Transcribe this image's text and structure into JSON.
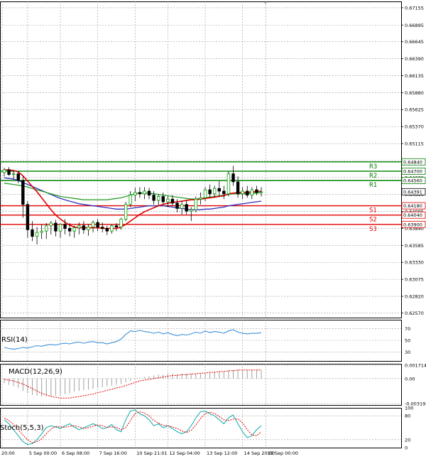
{
  "chart_data": {
    "type": "candlestick",
    "title": "",
    "main": {
      "y_ticks": [
        "0.67155",
        "0.66895",
        "0.66645",
        "0.66390",
        "0.66135",
        "0.65880",
        "0.65625",
        "0.65370",
        "0.65115",
        "0.64860",
        "0.64605",
        "0.64350",
        "0.64095",
        "0.63840",
        "0.63585",
        "0.63330",
        "0.63075",
        "0.62820",
        "0.62570"
      ],
      "tick_values": [
        0.67155,
        0.66895,
        0.66645,
        0.6639,
        0.66135,
        0.6588,
        0.65625,
        0.6537,
        0.65115,
        0.6486,
        0.64605,
        0.6435,
        0.64095,
        0.6384,
        0.63585,
        0.6333,
        0.63075,
        0.6282,
        0.6257
      ],
      "ylim": [
        0.625,
        0.6725
      ],
      "last_price": "0.64391",
      "last_value": 0.64391,
      "levels": [
        {
          "name": "R3",
          "value": 0.6484,
          "label": "0.64840",
          "color": "#008000"
        },
        {
          "name": "R2",
          "value": 0.647,
          "label": "0.64700",
          "color": "#008000"
        },
        {
          "name": "R1",
          "value": 0.6456,
          "label": "0.64560",
          "color": "#008000"
        },
        {
          "name": "S1",
          "value": 0.6418,
          "label": "0.64180",
          "color": "#e00000"
        },
        {
          "name": "S2",
          "value": 0.6404,
          "label": "0.64040",
          "color": "#e00000"
        },
        {
          "name": "S3",
          "value": 0.639,
          "label": "0.63900",
          "color": "#e00000"
        }
      ],
      "candles": [
        [
          0.6468,
          0.6475,
          0.6462,
          0.6472
        ],
        [
          0.6472,
          0.6476,
          0.6463,
          0.6465
        ],
        [
          0.6465,
          0.6471,
          0.6458,
          0.6466
        ],
        [
          0.6466,
          0.647,
          0.6452,
          0.6456
        ],
        [
          0.6456,
          0.6462,
          0.64,
          0.642
        ],
        [
          0.642,
          0.6425,
          0.637,
          0.6382
        ],
        [
          0.6382,
          0.6395,
          0.6365,
          0.6372
        ],
        [
          0.6372,
          0.6386,
          0.636,
          0.6378
        ],
        [
          0.6378,
          0.639,
          0.6368,
          0.638
        ],
        [
          0.638,
          0.6392,
          0.6368,
          0.6388
        ],
        [
          0.6388,
          0.6395,
          0.6375,
          0.6392
        ],
        [
          0.6392,
          0.6397,
          0.6372,
          0.638
        ],
        [
          0.638,
          0.6392,
          0.637,
          0.639
        ],
        [
          0.639,
          0.6398,
          0.6375,
          0.6384
        ],
        [
          0.6384,
          0.6392,
          0.6372,
          0.638
        ],
        [
          0.638,
          0.6388,
          0.637,
          0.6385
        ],
        [
          0.6385,
          0.6393,
          0.6375,
          0.6388
        ],
        [
          0.6388,
          0.6395,
          0.6376,
          0.6382
        ],
        [
          0.6382,
          0.639,
          0.6373,
          0.6386
        ],
        [
          0.6386,
          0.6396,
          0.6378,
          0.6393
        ],
        [
          0.6393,
          0.6398,
          0.638,
          0.6386
        ],
        [
          0.6386,
          0.6393,
          0.6378,
          0.6384
        ],
        [
          0.6384,
          0.6388,
          0.6374,
          0.638
        ],
        [
          0.638,
          0.639,
          0.6376,
          0.6388
        ],
        [
          0.6388,
          0.6392,
          0.638,
          0.6386
        ],
        [
          0.6386,
          0.64,
          0.6382,
          0.6398
        ],
        [
          0.6398,
          0.6424,
          0.6395,
          0.642
        ],
        [
          0.642,
          0.644,
          0.6416,
          0.6434
        ],
        [
          0.6434,
          0.6445,
          0.6425,
          0.6438
        ],
        [
          0.6438,
          0.6446,
          0.643,
          0.6436
        ],
        [
          0.6436,
          0.6446,
          0.6428,
          0.644
        ],
        [
          0.644,
          0.6445,
          0.6428,
          0.6434
        ],
        [
          0.6434,
          0.644,
          0.642,
          0.6426
        ],
        [
          0.6426,
          0.6435,
          0.6418,
          0.6432
        ],
        [
          0.6432,
          0.6438,
          0.642,
          0.6424
        ],
        [
          0.6424,
          0.6432,
          0.6416,
          0.6428
        ],
        [
          0.6428,
          0.6434,
          0.6418,
          0.6422
        ],
        [
          0.6422,
          0.6428,
          0.6408,
          0.6414
        ],
        [
          0.6414,
          0.6425,
          0.6405,
          0.642
        ],
        [
          0.642,
          0.6426,
          0.6405,
          0.641
        ],
        [
          0.641,
          0.6416,
          0.6395,
          0.6412
        ],
        [
          0.6412,
          0.6432,
          0.6408,
          0.6428
        ],
        [
          0.6428,
          0.6438,
          0.642,
          0.643
        ],
        [
          0.643,
          0.6446,
          0.6425,
          0.6442
        ],
        [
          0.6442,
          0.645,
          0.643,
          0.6436
        ],
        [
          0.6436,
          0.6448,
          0.643,
          0.6444
        ],
        [
          0.6444,
          0.6455,
          0.6432,
          0.644
        ],
        [
          0.644,
          0.6448,
          0.6428,
          0.6436
        ],
        [
          0.6436,
          0.647,
          0.6432,
          0.6466
        ],
        [
          0.6466,
          0.6478,
          0.6448,
          0.6454
        ],
        [
          0.6454,
          0.6462,
          0.643,
          0.6436
        ],
        [
          0.6436,
          0.6446,
          0.6428,
          0.644
        ],
        [
          0.644,
          0.6448,
          0.643,
          0.6434
        ],
        [
          0.6434,
          0.6446,
          0.6428,
          0.6442
        ],
        [
          0.6442,
          0.6448,
          0.6434,
          0.6438
        ],
        [
          0.6438,
          0.6446,
          0.6432,
          0.6439
        ]
      ],
      "sma_slow": [
        0.646,
        0.6459,
        0.6458,
        0.6456,
        0.6453,
        0.645,
        0.6447,
        0.6444,
        0.6441,
        0.6438,
        0.6435,
        0.6432,
        0.6429,
        0.6427,
        0.6425,
        0.6423,
        0.6421,
        0.642,
        0.6419,
        0.6418,
        0.6417,
        0.6416,
        0.6415,
        0.6414,
        0.6413,
        0.6413,
        0.6413,
        0.6414,
        0.6415,
        0.6416,
        0.6417,
        0.6418,
        0.6418,
        0.6418,
        0.6418,
        0.6417,
        0.6416,
        0.6415,
        0.6414,
        0.6413,
        0.6412,
        0.6412,
        0.6412,
        0.6413,
        0.6413,
        0.6414,
        0.6415,
        0.6416,
        0.6418,
        0.6419,
        0.642,
        0.6421,
        0.6422,
        0.6423,
        0.6424,
        0.6425
      ],
      "sma_mid": [
        0.6452,
        0.6451,
        0.645,
        0.6449,
        0.6448,
        0.6446,
        0.6444,
        0.6442,
        0.644,
        0.6438,
        0.6436,
        0.6434,
        0.6432,
        0.6431,
        0.643,
        0.6429,
        0.6428,
        0.6427,
        0.6427,
        0.6427,
        0.6427,
        0.6427,
        0.6427,
        0.6428,
        0.6429,
        0.643,
        0.6432,
        0.6434,
        0.6436,
        0.6437,
        0.6437,
        0.6437,
        0.6436,
        0.6435,
        0.6434,
        0.6433,
        0.6432,
        0.6431,
        0.643,
        0.6429,
        0.6428,
        0.6428,
        0.6429,
        0.643,
        0.6431,
        0.6432,
        0.6433,
        0.6434,
        0.6435,
        0.6436,
        0.6436,
        0.6436,
        0.6436,
        0.6437,
        0.6437,
        0.6438
      ],
      "sma_fast": [
        0.6472,
        0.6472,
        0.6471,
        0.6469,
        0.6463,
        0.6455,
        0.6447,
        0.6439,
        0.643,
        0.6421,
        0.6412,
        0.6404,
        0.6398,
        0.6393,
        0.6389,
        0.6386,
        0.6385,
        0.6385,
        0.6385,
        0.6385,
        0.6385,
        0.6384,
        0.6384,
        0.6384,
        0.6384,
        0.6386,
        0.639,
        0.6395,
        0.64,
        0.6405,
        0.6409,
        0.6412,
        0.6415,
        0.6418,
        0.642,
        0.6422,
        0.6423,
        0.6424,
        0.6425,
        0.6426,
        0.6427,
        0.6427,
        0.6428,
        0.6429,
        0.643,
        0.6431,
        0.6432,
        0.6433,
        0.6436,
        0.6437,
        0.6438,
        0.6438,
        0.6438,
        0.6439,
        0.6439,
        0.644
      ]
    },
    "rsi": {
      "label": "RSI(14)",
      "y_ticks": [
        "70",
        "50",
        "30"
      ],
      "tick_values": [
        70,
        50,
        30
      ],
      "ylim": [
        15,
        85
      ],
      "values": [
        38,
        36,
        35,
        36,
        38,
        37,
        39,
        41,
        40,
        42,
        43,
        42,
        44,
        45,
        44,
        46,
        47,
        45,
        47,
        48,
        46,
        46,
        44,
        46,
        48,
        52,
        60,
        66,
        65,
        67,
        65,
        64,
        62,
        64,
        61,
        63,
        60,
        58,
        60,
        59,
        61,
        64,
        62,
        66,
        63,
        65,
        64,
        62,
        66,
        68,
        64,
        62,
        61,
        62,
        62,
        63
      ]
    },
    "macd": {
      "label": "MACD(12,26,9)",
      "y_ticks": [
        "0.001714",
        "0.00",
        "-0.003195"
      ],
      "tick_values": [
        0.001714,
        0.0,
        -0.003195
      ],
      "ylim": [
        -0.0034,
        0.0019
      ],
      "histogram": [
        -0.0006,
        -0.0008,
        -0.001,
        -0.0012,
        -0.0016,
        -0.0019,
        -0.0021,
        -0.0022,
        -0.0023,
        -0.0023,
        -0.0023,
        -0.0022,
        -0.0021,
        -0.002,
        -0.0019,
        -0.0017,
        -0.0016,
        -0.0015,
        -0.0014,
        -0.0013,
        -0.0012,
        -0.0011,
        -0.001,
        -0.0009,
        -0.0008,
        -0.0007,
        -0.0005,
        -0.0003,
        -0.0001,
        0.0001,
        0.0002,
        0.0003,
        0.0004,
        0.0005,
        0.0005,
        0.0006,
        0.0006,
        0.0006,
        0.0006,
        0.0006,
        0.0006,
        0.0006,
        0.0007,
        0.0008,
        0.0008,
        0.0009,
        0.0009,
        0.0009,
        0.001,
        0.0011,
        0.0011,
        0.0011,
        0.0011,
        0.0011,
        0.0011,
        0.0011
      ],
      "signal": [
        -0.0001,
        -0.0002,
        -0.0003,
        -0.0005,
        -0.0007,
        -0.001,
        -0.0013,
        -0.0016,
        -0.0019,
        -0.0021,
        -0.0023,
        -0.0024,
        -0.0025,
        -0.0025,
        -0.0025,
        -0.0024,
        -0.0023,
        -0.0022,
        -0.0021,
        -0.002,
        -0.0018,
        -0.0017,
        -0.0015,
        -0.0014,
        -0.0012,
        -0.0011,
        -0.0009,
        -0.0007,
        -0.0005,
        -0.0003,
        -0.0002,
        -0.0001,
        0.0,
        0.0001,
        0.0002,
        0.0003,
        0.0004,
        0.0004,
        0.0005,
        0.0005,
        0.0006,
        0.0006,
        0.0007,
        0.0007,
        0.0008,
        0.0008,
        0.0009,
        0.0009,
        0.001,
        0.001,
        0.0011,
        0.0011,
        0.0011,
        0.0011,
        0.0011,
        0.0011
      ]
    },
    "stoch": {
      "label": "Stoch(5,5,3)",
      "y_ticks": [
        "100",
        "80",
        "20",
        "0"
      ],
      "tick_values": [
        100,
        80,
        20,
        0
      ],
      "ylim": [
        0,
        100
      ],
      "k": [
        70,
        60,
        45,
        30,
        15,
        8,
        10,
        20,
        35,
        50,
        55,
        52,
        48,
        55,
        60,
        52,
        45,
        50,
        55,
        60,
        55,
        48,
        50,
        58,
        45,
        40,
        70,
        92,
        95,
        85,
        80,
        70,
        55,
        60,
        50,
        55,
        48,
        40,
        35,
        40,
        55,
        75,
        90,
        92,
        85,
        80,
        70,
        60,
        75,
        82,
        60,
        40,
        25,
        30,
        45,
        55
      ],
      "d": [
        75,
        68,
        58,
        45,
        32,
        20,
        12,
        15,
        22,
        35,
        47,
        53,
        52,
        51,
        54,
        55,
        52,
        48,
        50,
        54,
        57,
        55,
        51,
        52,
        51,
        45,
        50,
        68,
        86,
        90,
        87,
        80,
        68,
        62,
        56,
        55,
        52,
        48,
        42,
        38,
        44,
        57,
        73,
        86,
        89,
        86,
        78,
        70,
        68,
        72,
        72,
        62,
        45,
        32,
        30,
        40
      ]
    },
    "x_tick_labels": [
      "20:00",
      "5 Sep 00:00",
      "6 Sep 08:00",
      "7 Sep 16:00",
      "10 Sep 21:01",
      "12 Sep 04:00",
      "13 Sep 12:00",
      "14 Sep 20:00",
      "18 Sep 00:00"
    ],
    "x_tick_index": [
      0,
      5,
      12,
      20,
      28,
      35,
      43,
      51,
      56
    ],
    "colors": {
      "bull": "#00a000",
      "bear": "#000000",
      "sma_fast": "#e00000",
      "sma_mid": "#2ca02c",
      "sma_slow": "#3030c0",
      "rsi": "#3d8fd8",
      "macd_signal": "#e00000",
      "macd_hist": "#a0a0a0",
      "stoch_k": "#20b0b0",
      "stoch_d": "#e00000",
      "grid": "#9a9a9a",
      "level_label_bg": "#ffffff"
    }
  }
}
